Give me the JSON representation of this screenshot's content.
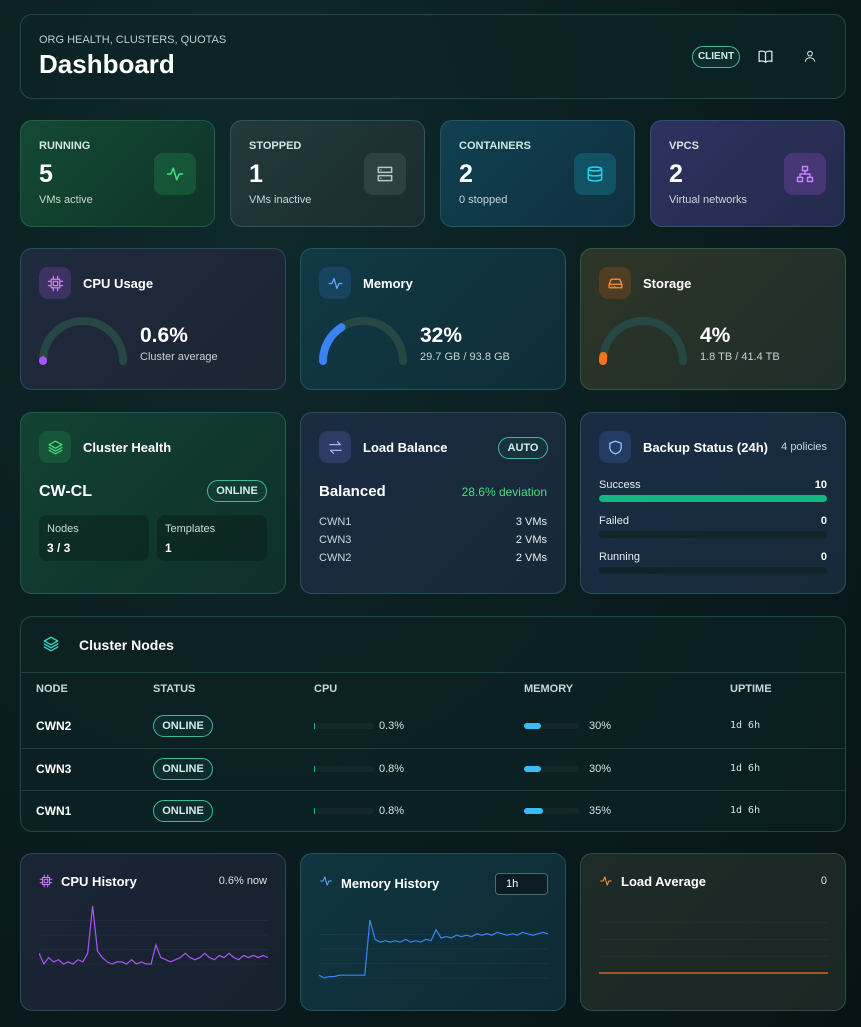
{
  "header": {
    "subtitle": "ORG HEALTH, CLUSTERS, QUOTAS",
    "title": "Dashboard",
    "badge": "CLIENT"
  },
  "stats": [
    {
      "label": "RUNNING",
      "value": 5,
      "note": "VMs active"
    },
    {
      "label": "STOPPED",
      "value": 1,
      "note": "VMs inactive"
    },
    {
      "label": "CONTAINERS",
      "value": 2,
      "note": "0 stopped"
    },
    {
      "label": "VPCS",
      "value": 2,
      "note": "Virtual networks"
    }
  ],
  "gauges": [
    {
      "title": "CPU Usage",
      "value": 0.6,
      "label": "0.6%",
      "note": "Cluster average",
      "color": "#a855f7"
    },
    {
      "title": "Memory",
      "value": 32,
      "label": "32%",
      "note": "29.7 GB / 93.8 GB",
      "color": "#3b82f6"
    },
    {
      "title": "Storage",
      "value": 4,
      "label": "4%",
      "note": "1.8 TB / 41.4 TB",
      "color": "#f97316"
    }
  ],
  "cluster_health": {
    "title": "Cluster Health",
    "name": "CW-CL",
    "status": "ONLINE",
    "stats": [
      {
        "label": "Nodes",
        "value": "3 / 3"
      },
      {
        "label": "Templates",
        "value": 1
      }
    ]
  },
  "load_balance": {
    "title": "Load Balance",
    "badge": "AUTO",
    "state": "Balanced",
    "deviation": "28.6% deviation",
    "nodes": [
      {
        "name": "CWN1",
        "vms": "3 VMs"
      },
      {
        "name": "CWN3",
        "vms": "2 VMs"
      },
      {
        "name": "CWN2",
        "vms": "2 VMs"
      }
    ]
  },
  "backup": {
    "title": "Backup Status (24h)",
    "policies": "4 policies",
    "rows": [
      {
        "label": "Success",
        "value": 10
      },
      {
        "label": "Failed",
        "value": 0
      },
      {
        "label": "Running",
        "value": 0
      }
    ]
  },
  "nodes_table": {
    "title": "Cluster Nodes",
    "columns": [
      "NODE",
      "STATUS",
      "CPU",
      "MEMORY",
      "UPTIME"
    ],
    "rows": [
      {
        "node": "CWN2",
        "status": "ONLINE",
        "cpu": {
          "value": 0.3,
          "label": "0.3%"
        },
        "memory": {
          "value": 30,
          "label": "30%"
        },
        "uptime": "1d 6h"
      },
      {
        "node": "CWN3",
        "status": "ONLINE",
        "cpu": {
          "value": 0.8,
          "label": "0.8%"
        },
        "memory": {
          "value": 30,
          "label": "30%"
        },
        "uptime": "1d 6h"
      },
      {
        "node": "CWN1",
        "status": "ONLINE",
        "cpu": {
          "value": 0.8,
          "label": "0.8%"
        },
        "memory": {
          "value": 35,
          "label": "35%"
        },
        "uptime": "1d 6h"
      }
    ]
  },
  "history": [
    {
      "title": "CPU History",
      "note": "0.6% now",
      "color": "#a855f7",
      "values": [
        0.7,
        0.45,
        0.6,
        0.5,
        0.55,
        0.45,
        0.5,
        0.45,
        0.55,
        0.5,
        0.7,
        1.8,
        0.75,
        0.6,
        0.5,
        0.45,
        0.5,
        0.5,
        0.45,
        0.55,
        0.45,
        0.5,
        0.45,
        0.45,
        0.9,
        0.6,
        0.55,
        0.5,
        0.55,
        0.6,
        0.7,
        0.6,
        0.55,
        0.6,
        0.7,
        0.6,
        0.55,
        0.65,
        0.6,
        0.7,
        0.6,
        0.55,
        0.65,
        0.6,
        0.65,
        0.6,
        0.65,
        0.6
      ]
    },
    {
      "title": "Memory History",
      "select": "1h",
      "color": "#3b82f6",
      "values": [
        28.6,
        28.4,
        28.5,
        28.5,
        28.6,
        28.6,
        28.6,
        28.6,
        28.6,
        28.6,
        32.6,
        31.2,
        31.0,
        31.1,
        31.0,
        31.1,
        31.0,
        31.2,
        31.0,
        31.1,
        31.0,
        31.2,
        31.1,
        31.9,
        31.3,
        31.4,
        31.3,
        31.5,
        31.4,
        31.5,
        31.4,
        31.6,
        31.5,
        31.6,
        31.5,
        31.7,
        31.6,
        31.5,
        31.6,
        31.5,
        31.7,
        31.6,
        31.5,
        31.6,
        31.7,
        31.6
      ]
    },
    {
      "title": "Load Average",
      "note": 0,
      "color": "#f97316",
      "values": [
        0,
        0,
        0,
        0,
        0,
        0,
        0,
        0,
        0,
        0,
        0,
        0,
        0,
        0,
        0,
        0,
        0,
        0,
        0,
        0
      ]
    }
  ]
}
